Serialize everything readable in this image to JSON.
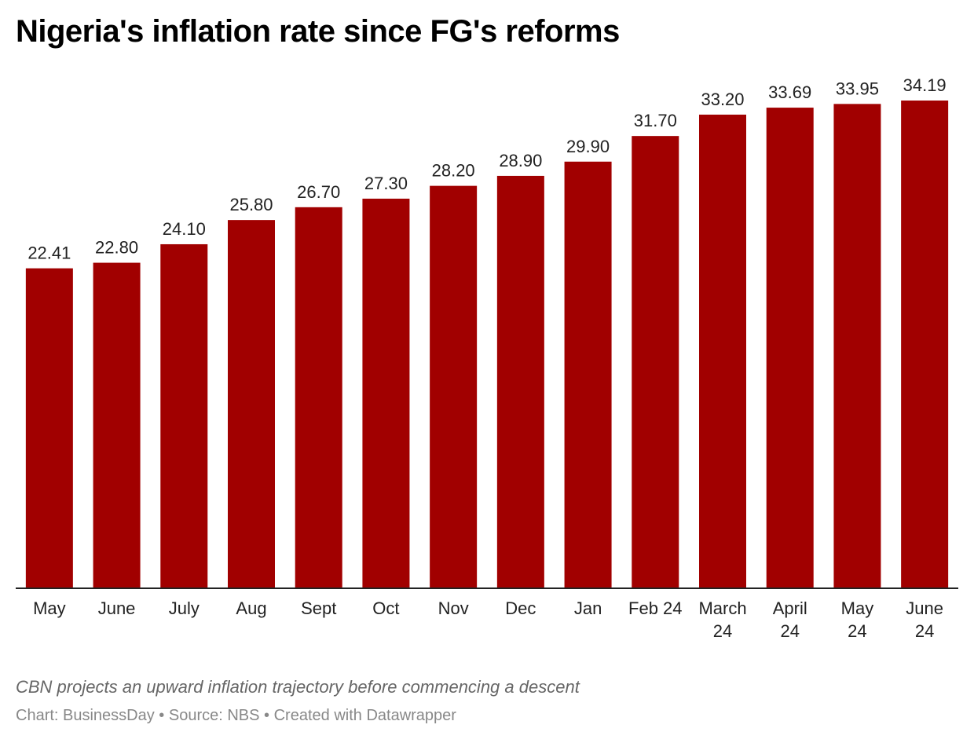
{
  "title": "Nigeria's inflation rate since FG's reforms",
  "notes": "CBN projects an upward inflation trajectory before commencing a descent",
  "footer": {
    "chart_credit": "Chart: BusinessDay",
    "source": "Source: NBS",
    "tool": "Created with Datawrapper",
    "separator": " • "
  },
  "colors": {
    "bar": "#a10000",
    "axis": "#222222",
    "text": "#222222"
  },
  "chart_data": {
    "type": "bar",
    "title": "Nigeria's inflation rate since FG's reforms",
    "xlabel": "",
    "ylabel": "",
    "categories": [
      [
        "May"
      ],
      [
        "June"
      ],
      [
        "July"
      ],
      [
        "Aug"
      ],
      [
        "Sept"
      ],
      [
        "Oct"
      ],
      [
        "Nov"
      ],
      [
        "Dec"
      ],
      [
        "Jan"
      ],
      [
        "Feb 24"
      ],
      [
        "March",
        "24"
      ],
      [
        "April",
        "24"
      ],
      [
        "May",
        "24"
      ],
      [
        "June",
        "24"
      ]
    ],
    "values": [
      22.41,
      22.8,
      24.1,
      25.8,
      26.7,
      27.3,
      28.2,
      28.9,
      29.9,
      31.7,
      33.2,
      33.69,
      33.95,
      34.19
    ],
    "value_labels": [
      "22.41",
      "22.80",
      "24.10",
      "25.80",
      "26.70",
      "27.30",
      "28.20",
      "28.90",
      "29.90",
      "31.70",
      "33.20",
      "33.69",
      "33.95",
      "34.19"
    ],
    "ylim": [
      0,
      34.19
    ],
    "grid": false,
    "legend": "none"
  }
}
